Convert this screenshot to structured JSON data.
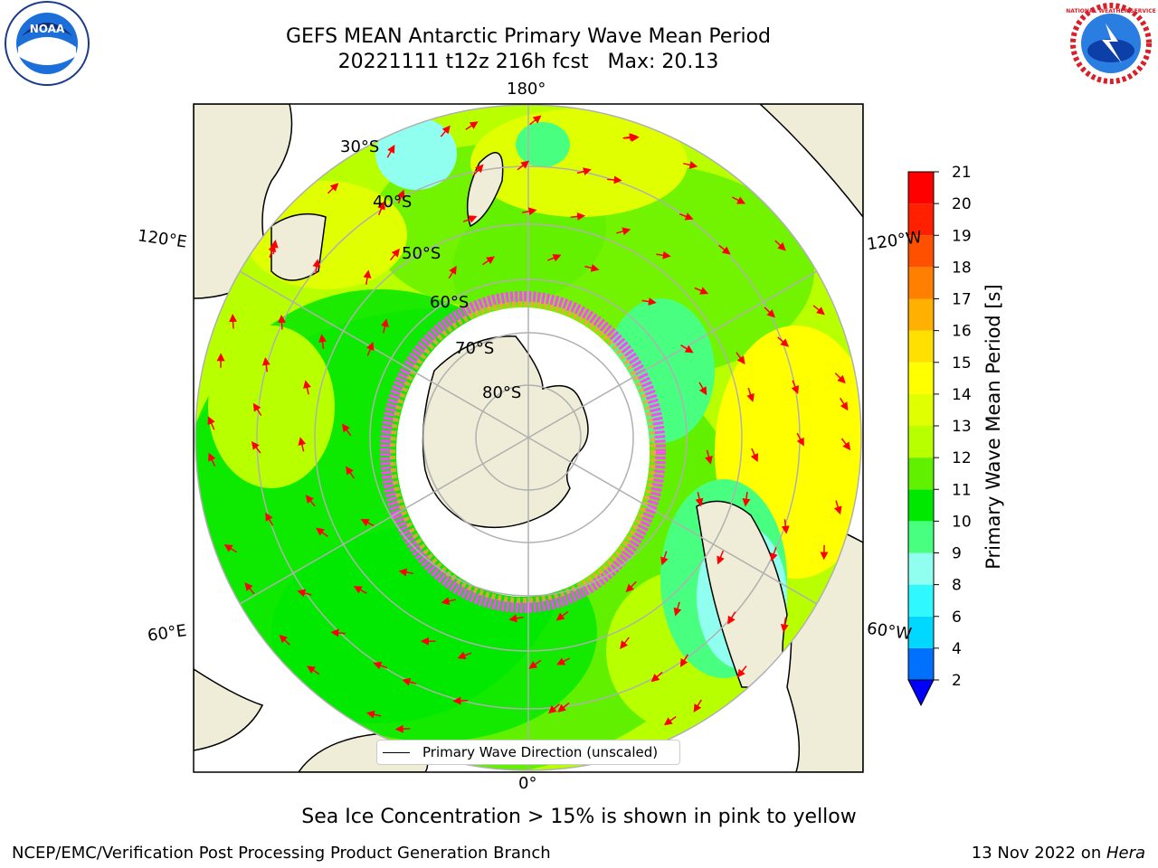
{
  "title_line1": "GEFS MEAN Antarctic Primary Wave Mean Period",
  "title_line2": "20221111 t12z 216h fcst   Max: 20.13",
  "longitude_labels": {
    "top": "180°",
    "bottom": "0°",
    "upper_left": "120°E",
    "upper_right": "120°W",
    "lower_left": "60°E",
    "lower_right": "60°W"
  },
  "latitude_labels": [
    "30°S",
    "40°S",
    "50°S",
    "60°S",
    "70°S",
    "80°S"
  ],
  "legend_label": "Primary Wave Direction (unscaled)",
  "colorbar": {
    "label": "Primary Wave Mean Period [s]",
    "ticks": [
      "2",
      "4",
      "6",
      "8",
      "9",
      "10",
      "11",
      "12",
      "13",
      "14",
      "15",
      "16",
      "17",
      "18",
      "19",
      "20",
      "21"
    ],
    "colors": [
      "#0070ff",
      "#00d8ff",
      "#30f8ff",
      "#90fff0",
      "#48ff80",
      "#00e800",
      "#60f000",
      "#b8ff00",
      "#e0ff00",
      "#ffff00",
      "#ffe000",
      "#ffb000",
      "#ff8000",
      "#ff5000",
      "#ff2000",
      "#ff0000"
    ],
    "extend_color": "#0000ff"
  },
  "note": "Sea Ice Concentration > 15% is shown in pink to yellow",
  "footer_left": "NCEP/EMC/Verification Post Processing Product Generation Branch",
  "footer_right_date": "13 Nov 2022 on ",
  "footer_right_system": "Hera",
  "logos": {
    "left": "NOAA",
    "right": "NATIONAL WEATHER SERVICE"
  },
  "colors": {
    "land": "#efedd8",
    "arrow": "#ff0000",
    "ice_edge": "#ff44ff",
    "ocean_base": "#b8ff00"
  }
}
